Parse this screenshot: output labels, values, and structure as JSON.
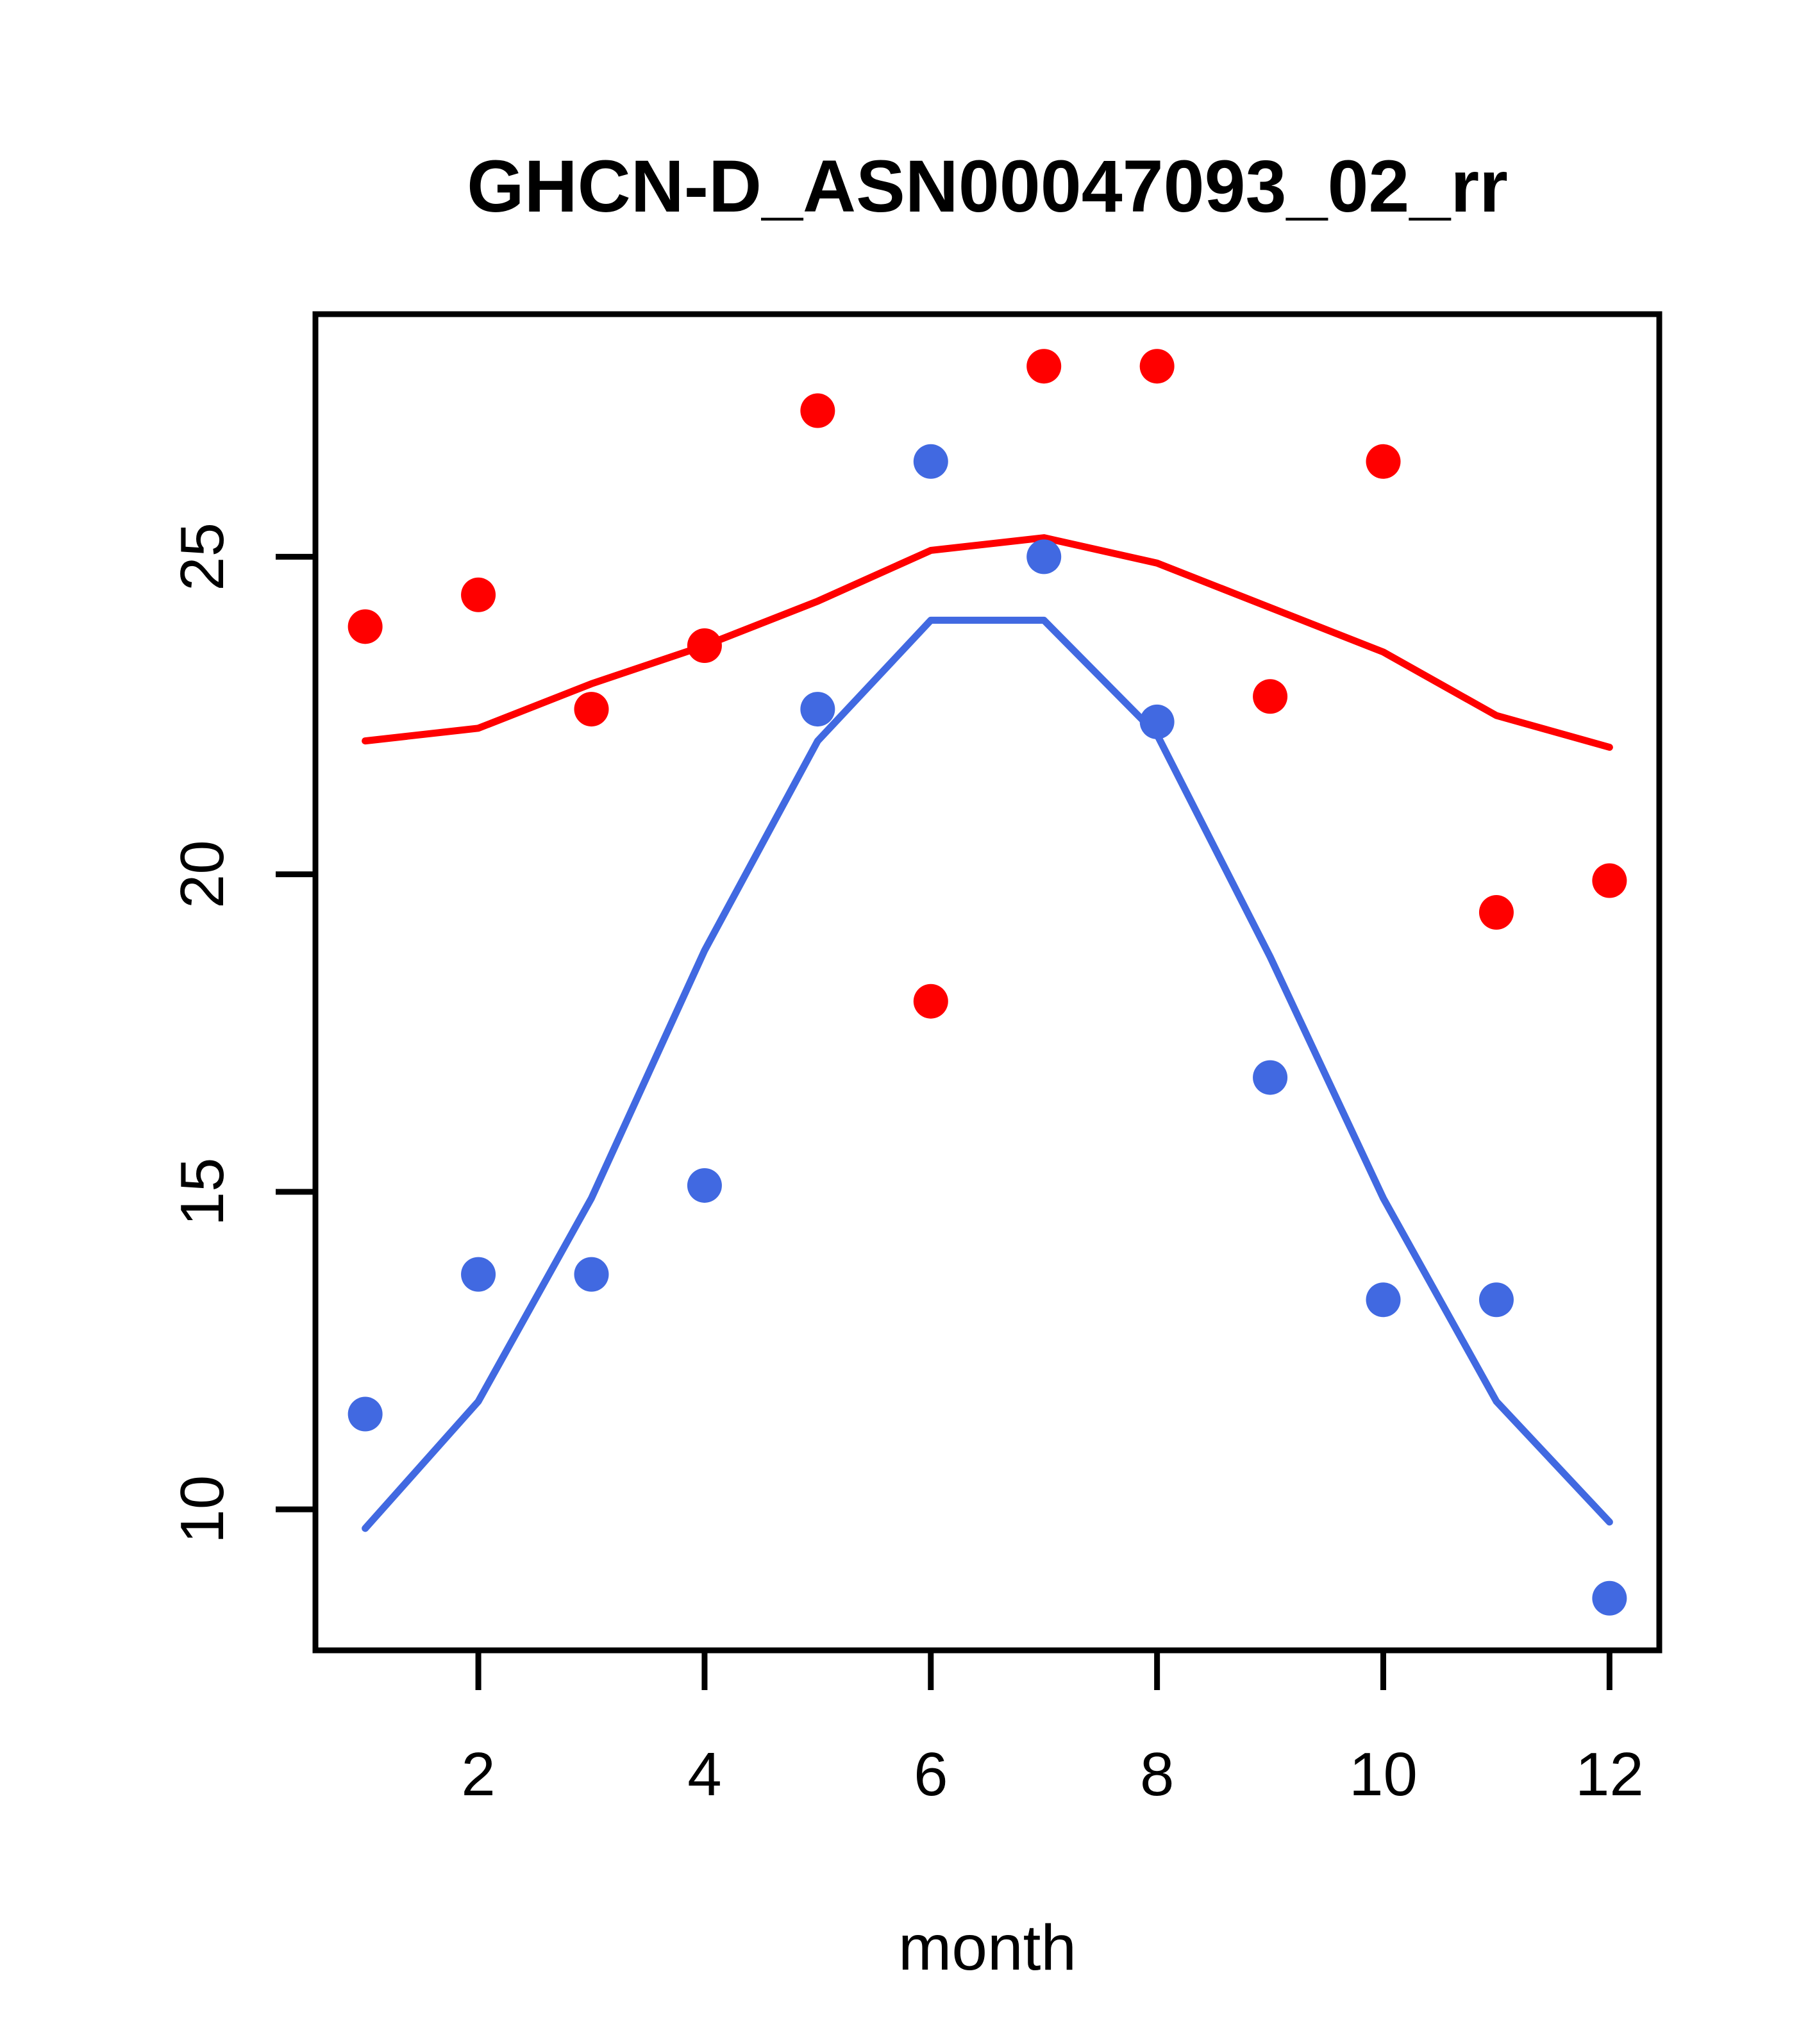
{
  "title": "GHCN-D_ASN00047093_02_rr",
  "chart_data": {
    "type": "scatter",
    "title": "GHCN-D_ASN00047093_02_rr",
    "xlabel": "month",
    "ylabel": "",
    "x": [
      1,
      2,
      3,
      4,
      5,
      6,
      7,
      8,
      9,
      10,
      11,
      12
    ],
    "x_tick_labels": [
      "2",
      "4",
      "6",
      "8",
      "10",
      "12"
    ],
    "x_tick_values": [
      2,
      4,
      6,
      8,
      10,
      12
    ],
    "y_tick_labels": [
      "10",
      "15",
      "20",
      "25"
    ],
    "y_tick_values": [
      10,
      15,
      20,
      25
    ],
    "xlim": [
      0.56,
      12.44
    ],
    "ylim": [
      7.78,
      28.82
    ],
    "grid": false,
    "legend_position": "none",
    "series": [
      {
        "name": "red-points",
        "kind": "points",
        "color": "#FF0000",
        "values": [
          23.9,
          24.4,
          22.6,
          23.6,
          27.3,
          18.0,
          28.0,
          28.0,
          22.8,
          26.5,
          19.4,
          19.9
        ]
      },
      {
        "name": "blue-points",
        "kind": "points",
        "color": "#4169E1",
        "values": [
          11.5,
          13.7,
          13.7,
          15.1,
          22.6,
          26.5,
          25.0,
          22.4,
          16.8,
          13.3,
          13.3,
          8.6
        ]
      },
      {
        "name": "red-lowess-line",
        "kind": "line",
        "color": "#FF0000",
        "values": [
          22.1,
          22.3,
          23.0,
          23.6,
          24.3,
          25.1,
          25.3,
          24.9,
          24.2,
          23.5,
          22.5,
          22.0
        ]
      },
      {
        "name": "blue-lowess-line",
        "kind": "line",
        "color": "#4169E1",
        "values": [
          9.7,
          11.7,
          14.9,
          18.8,
          22.1,
          24.0,
          24.0,
          22.2,
          18.7,
          14.9,
          11.7,
          9.8
        ]
      }
    ]
  },
  "colors": {
    "background": "#FFFFFF",
    "axis": "#000000",
    "red_series": "#FF0000",
    "blue_series": "#4169E1"
  }
}
